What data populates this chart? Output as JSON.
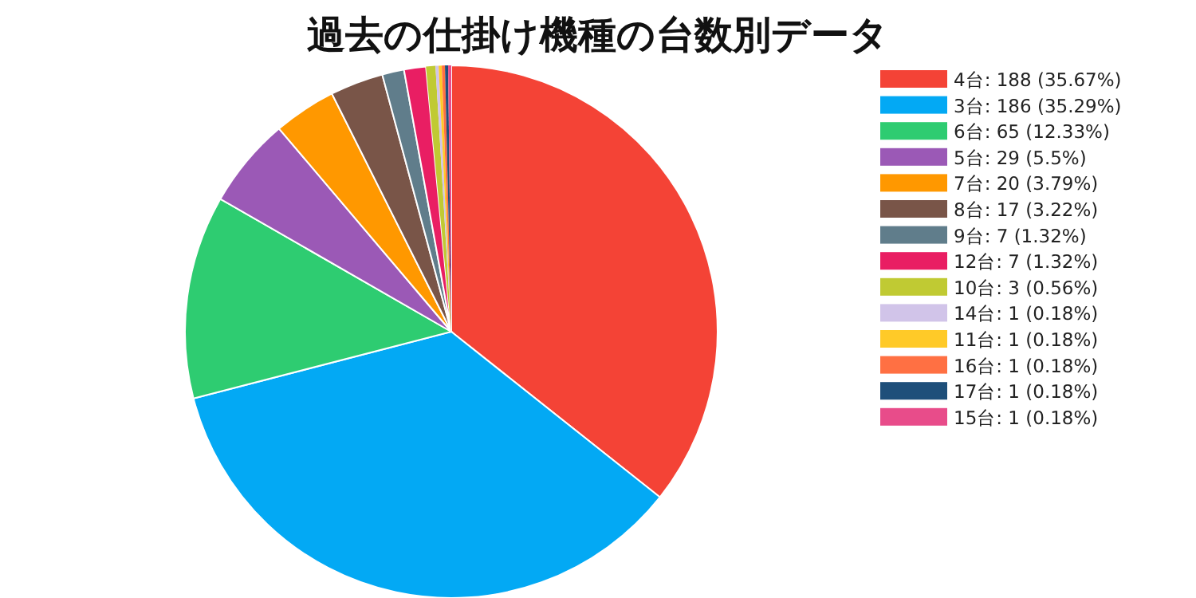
{
  "chart_data": {
    "type": "pie",
    "title": "過去の仕掛け機種の台数別データ",
    "categories": [
      "4台: 188 (35.67%)",
      "3台: 186 (35.29%)",
      "6台: 65 (12.33%)",
      "5台: 29 (5.5%)",
      "7台: 20 (3.79%)",
      "8台: 17 (3.22%)",
      "9台: 7 (1.32%)",
      "12台: 7 (1.32%)",
      "10台: 3 (0.56%)",
      "14台: 1 (0.18%)",
      "11台: 1 (0.18%)",
      "16台: 1 (0.18%)",
      "17台: 1 (0.18%)",
      "15台: 1 (0.18%)"
    ],
    "values": [
      188,
      186,
      65,
      29,
      20,
      17,
      7,
      7,
      3,
      1,
      1,
      1,
      1,
      1
    ],
    "colors": [
      "#f44336",
      "#03a9f4",
      "#2ecc71",
      "#9b59b6",
      "#ff9800",
      "#795548",
      "#607d8b",
      "#e91e63",
      "#c0ca33",
      "#d1c4e9",
      "#ffca28",
      "#ff7043",
      "#1e4f7a",
      "#e84c8a"
    ],
    "legend": "right"
  }
}
